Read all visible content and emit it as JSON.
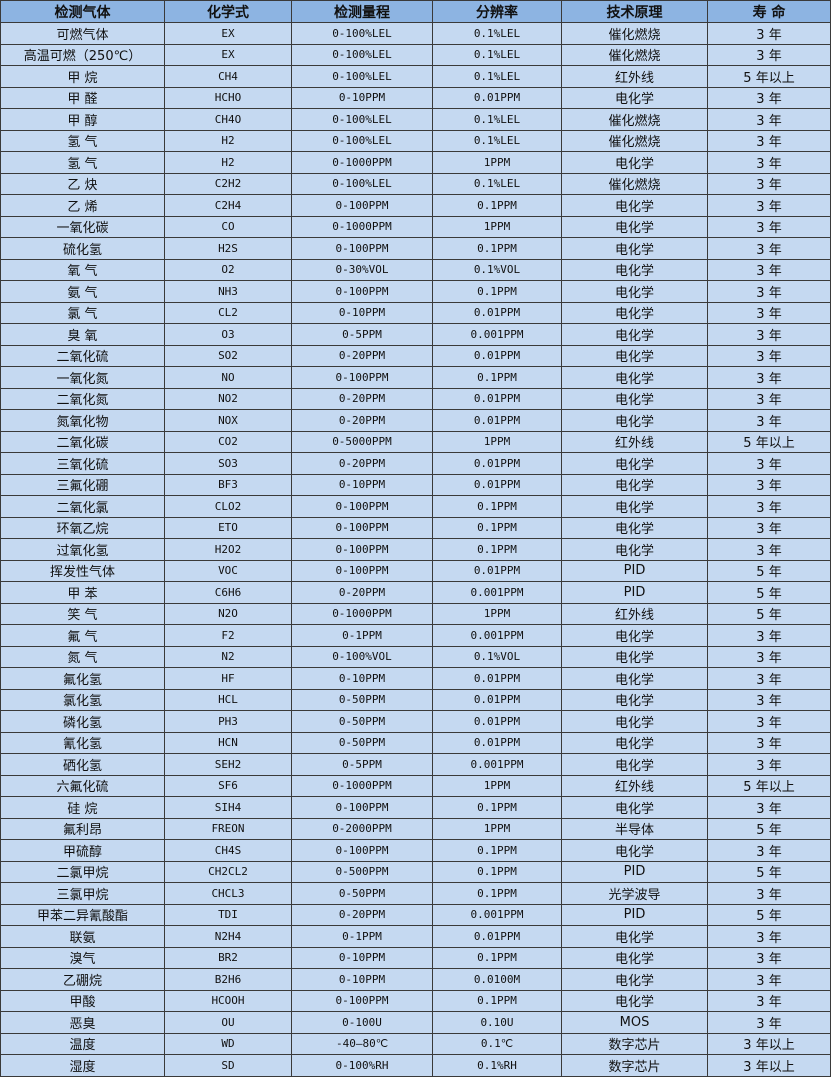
{
  "colors": {
    "header_bg": "#8db4e2",
    "row_bg": "#c5d9f1",
    "border": "#3a3a3a"
  },
  "table": {
    "headers": [
      "检测气体",
      "化学式",
      "检测量程",
      "分辨率",
      "技术原理",
      "寿 命"
    ],
    "rows": [
      [
        "可燃气体",
        "EX",
        "0-100%LEL",
        "0.1%LEL",
        "催化燃烧",
        "3 年"
      ],
      [
        "高温可燃（250℃）",
        "EX",
        "0-100%LEL",
        "0.1%LEL",
        "催化燃烧",
        "3 年"
      ],
      [
        "甲 烷",
        "CH4",
        "0-100%LEL",
        "0.1%LEL",
        "红外线",
        "5 年以上"
      ],
      [
        "甲 醛",
        "HCHO",
        "0-10PPM",
        "0.01PPM",
        "电化学",
        "3 年"
      ],
      [
        "甲 醇",
        "CH4O",
        "0-100%LEL",
        "0.1%LEL",
        "催化燃烧",
        "3 年"
      ],
      [
        "氢 气",
        "H2",
        "0-100%LEL",
        "0.1%LEL",
        "催化燃烧",
        "3 年"
      ],
      [
        "氢 气",
        "H2",
        "0-1000PPM",
        "1PPM",
        "电化学",
        "3 年"
      ],
      [
        "乙 炔",
        "C2H2",
        "0-100%LEL",
        "0.1%LEL",
        "催化燃烧",
        "3 年"
      ],
      [
        "乙 烯",
        "C2H4",
        "0-100PPM",
        "0.1PPM",
        "电化学",
        "3 年"
      ],
      [
        "一氧化碳",
        "CO",
        "0-1000PPM",
        "1PPM",
        "电化学",
        "3 年"
      ],
      [
        "硫化氢",
        "H2S",
        "0-100PPM",
        "0.1PPM",
        "电化学",
        "3 年"
      ],
      [
        "氧 气",
        "O2",
        "0-30%VOL",
        "0.1%VOL",
        "电化学",
        "3 年"
      ],
      [
        "氨 气",
        "NH3",
        "0-100PPM",
        "0.1PPM",
        "电化学",
        "3 年"
      ],
      [
        "氯 气",
        "CL2",
        "0-10PPM",
        "0.01PPM",
        "电化学",
        "3 年"
      ],
      [
        "臭 氧",
        "O3",
        "0-5PPM",
        "0.001PPM",
        "电化学",
        "3 年"
      ],
      [
        "二氧化硫",
        "SO2",
        "0-20PPM",
        "0.01PPM",
        "电化学",
        "3 年"
      ],
      [
        "一氧化氮",
        "NO",
        "0-100PPM",
        "0.1PPM",
        "电化学",
        "3 年"
      ],
      [
        "二氧化氮",
        "NO2",
        "0-20PPM",
        "0.01PPM",
        "电化学",
        "3 年"
      ],
      [
        "氮氧化物",
        "NOX",
        "0-20PPM",
        "0.01PPM",
        "电化学",
        "3 年"
      ],
      [
        "二氧化碳",
        "CO2",
        "0-5000PPM",
        "1PPM",
        "红外线",
        "5 年以上"
      ],
      [
        "三氧化硫",
        "SO3",
        "0-20PPM",
        "0.01PPM",
        "电化学",
        "3 年"
      ],
      [
        "三氟化硼",
        "BF3",
        "0-10PPM",
        "0.01PPM",
        "电化学",
        "3 年"
      ],
      [
        "二氧化氯",
        "CLO2",
        "0-100PPM",
        "0.1PPM",
        "电化学",
        "3 年"
      ],
      [
        "环氧乙烷",
        "ETO",
        "0-100PPM",
        "0.1PPM",
        "电化学",
        "3 年"
      ],
      [
        "过氧化氢",
        "H2O2",
        "0-100PPM",
        "0.1PPM",
        "电化学",
        "3 年"
      ],
      [
        "挥发性气体",
        "VOC",
        "0-100PPM",
        "0.01PPM",
        "PID",
        "5 年"
      ],
      [
        "甲 苯",
        "C6H6",
        "0-20PPM",
        "0.001PPM",
        "PID",
        "5 年"
      ],
      [
        "笑 气",
        "N2O",
        "0-1000PPM",
        "1PPM",
        "红外线",
        "5 年"
      ],
      [
        "氟 气",
        "F2",
        "0-1PPM",
        "0.001PPM",
        "电化学",
        "3 年"
      ],
      [
        "氮 气",
        "N2",
        "0-100%VOL",
        "0.1%VOL",
        "电化学",
        "3 年"
      ],
      [
        "氟化氢",
        "HF",
        "0-10PPM",
        "0.01PPM",
        "电化学",
        "3 年"
      ],
      [
        "氯化氢",
        "HCL",
        "0-50PPM",
        "0.01PPM",
        "电化学",
        "3 年"
      ],
      [
        "磷化氢",
        "PH3",
        "0-50PPM",
        "0.01PPM",
        "电化学",
        "3 年"
      ],
      [
        "氰化氢",
        "HCN",
        "0-50PPM",
        "0.01PPM",
        "电化学",
        "3 年"
      ],
      [
        "硒化氢",
        "SEH2",
        "0-5PPM",
        "0.001PPM",
        "电化学",
        "3 年"
      ],
      [
        "六氟化硫",
        "SF6",
        "0-1000PPM",
        "1PPM",
        "红外线",
        "5 年以上"
      ],
      [
        "硅 烷",
        "SIH4",
        "0-100PPM",
        "0.1PPM",
        "电化学",
        "3 年"
      ],
      [
        "氟利昂",
        "FREON",
        "0-2000PPM",
        "1PPM",
        "半导体",
        "5 年"
      ],
      [
        "甲硫醇",
        "CH4S",
        "0-100PPM",
        "0.1PPM",
        "电化学",
        "3 年"
      ],
      [
        "二氯甲烷",
        "CH2CL2",
        "0-500PPM",
        "0.1PPM",
        "PID",
        "5 年"
      ],
      [
        "三氯甲烷",
        "CHCL3",
        "0-50PPM",
        "0.1PPM",
        "光学波导",
        "3 年"
      ],
      [
        "甲苯二异氰酸酯",
        "TDI",
        "0-20PPM",
        "0.001PPM",
        "PID",
        "5 年"
      ],
      [
        "联氨",
        "N2H4",
        "0-1PPM",
        "0.01PPM",
        "电化学",
        "3 年"
      ],
      [
        "溴气",
        "BR2",
        "0-10PPM",
        "0.1PPM",
        "电化学",
        "3 年"
      ],
      [
        "乙硼烷",
        "B2H6",
        "0-10PPM",
        "0.0100M",
        "电化学",
        "3 年"
      ],
      [
        "甲酸",
        "HCOOH",
        "0-100PPM",
        "0.1PPM",
        "电化学",
        "3 年"
      ],
      [
        "恶臭",
        "OU",
        "0-100U",
        "0.10U",
        "MOS",
        "3 年"
      ],
      [
        "温度",
        "WD",
        "-40—80℃",
        "0.1℃",
        "数字芯片",
        "3 年以上"
      ],
      [
        "湿度",
        "SD",
        "0-100%RH",
        "0.1%RH",
        "数字芯片",
        "3 年以上"
      ]
    ]
  }
}
